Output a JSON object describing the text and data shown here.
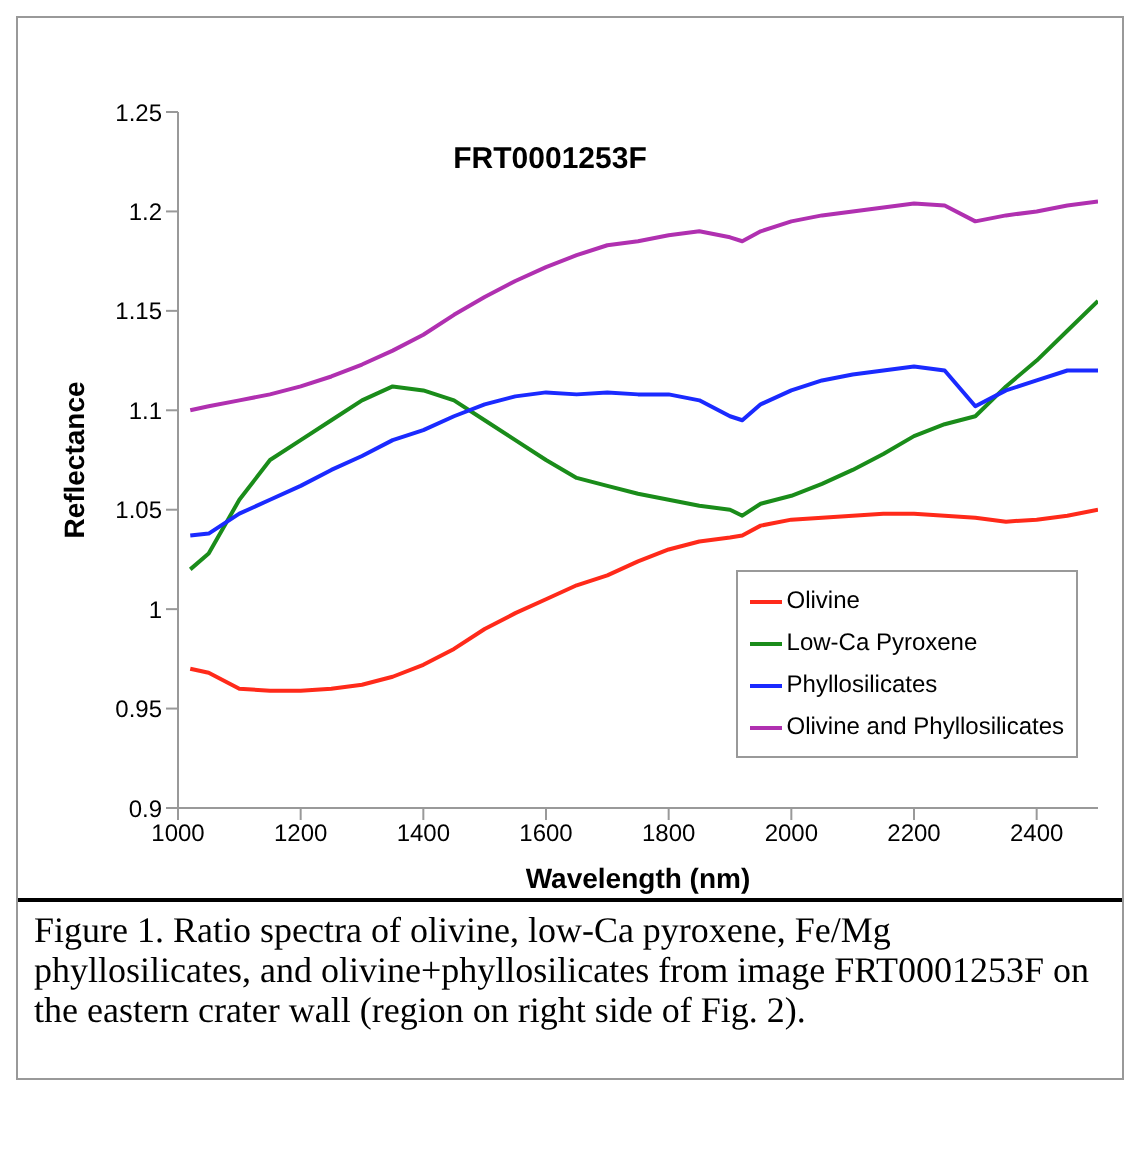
{
  "chart_data": {
    "type": "line",
    "title": "FRT0001253F",
    "xlabel": "Wavelength (nm)",
    "ylabel": "Reflectance",
    "x": [
      1020,
      1050,
      1100,
      1150,
      1200,
      1250,
      1300,
      1350,
      1400,
      1450,
      1500,
      1550,
      1600,
      1650,
      1700,
      1750,
      1800,
      1850,
      1900,
      1920,
      1950,
      2000,
      2050,
      2100,
      2150,
      2200,
      2250,
      2300,
      2350,
      2400,
      2450,
      2500
    ],
    "series": [
      {
        "name": "Olivine",
        "color": "#ff2a1a",
        "values": [
          0.97,
          0.968,
          0.96,
          0.959,
          0.959,
          0.96,
          0.962,
          0.966,
          0.972,
          0.98,
          0.99,
          0.998,
          1.005,
          1.012,
          1.017,
          1.024,
          1.03,
          1.034,
          1.036,
          1.037,
          1.042,
          1.045,
          1.046,
          1.047,
          1.048,
          1.048,
          1.047,
          1.046,
          1.044,
          1.045,
          1.047,
          1.05
        ]
      },
      {
        "name": "Low-Ca Pyroxene",
        "color": "#1a8c1a",
        "values": [
          1.02,
          1.028,
          1.055,
          1.075,
          1.085,
          1.095,
          1.105,
          1.112,
          1.11,
          1.105,
          1.095,
          1.085,
          1.075,
          1.066,
          1.062,
          1.058,
          1.055,
          1.052,
          1.05,
          1.047,
          1.053,
          1.057,
          1.063,
          1.07,
          1.078,
          1.087,
          1.093,
          1.097,
          1.112,
          1.125,
          1.14,
          1.155
        ]
      },
      {
        "name": "Phyllosilicates",
        "color": "#1a2aff",
        "values": [
          1.037,
          1.038,
          1.048,
          1.055,
          1.062,
          1.07,
          1.077,
          1.085,
          1.09,
          1.097,
          1.103,
          1.107,
          1.109,
          1.108,
          1.109,
          1.108,
          1.108,
          1.105,
          1.097,
          1.095,
          1.103,
          1.11,
          1.115,
          1.118,
          1.12,
          1.122,
          1.12,
          1.102,
          1.11,
          1.115,
          1.12,
          1.12
        ]
      },
      {
        "name": "Olivine and Phyllosilicates",
        "color": "#b030b0",
        "values": [
          1.1,
          1.102,
          1.105,
          1.108,
          1.112,
          1.117,
          1.123,
          1.13,
          1.138,
          1.148,
          1.157,
          1.165,
          1.172,
          1.178,
          1.183,
          1.185,
          1.188,
          1.19,
          1.187,
          1.185,
          1.19,
          1.195,
          1.198,
          1.2,
          1.202,
          1.204,
          1.203,
          1.195,
          1.198,
          1.2,
          1.203,
          1.205
        ]
      }
    ],
    "xlim": [
      1000,
      2500
    ],
    "xticks": [
      1000,
      1200,
      1400,
      1600,
      1800,
      2000,
      2200,
      2400
    ],
    "ylim": [
      0.9,
      1.25
    ],
    "yticks": [
      0.9,
      0.95,
      1,
      1.05,
      1.1,
      1.15,
      1.2,
      1.25
    ],
    "grid": false,
    "legend": "bottom right",
    "marker": "none",
    "line_style": "solid",
    "annotations": [
      "Figure 1. Ratio spectra of  olivine, low-Ca pyroxene, Fe/Mg phyllosilicates, and olivine+phyllosilicates from image FRT0001253F on the eastern crater wall (region on right side of Fig. 2)."
    ]
  }
}
